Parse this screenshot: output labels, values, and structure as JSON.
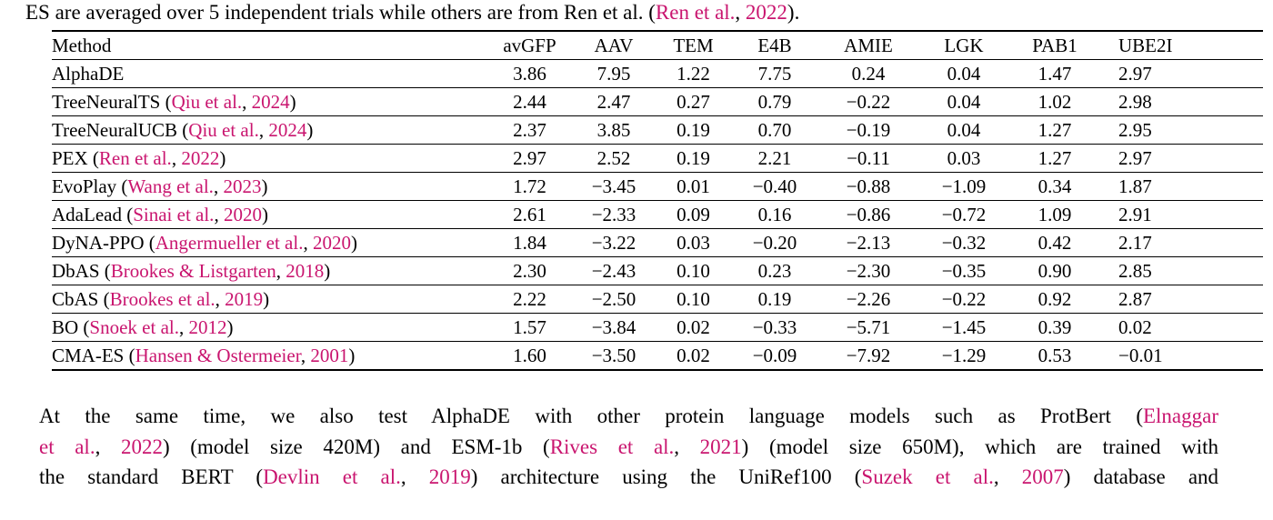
{
  "colors": {
    "background": "#ffffff",
    "text": "#000000",
    "citation": "#C9156F",
    "rule": "#000000"
  },
  "caption": {
    "segments": [
      {
        "t": "ES are averaged over 5 independent trials while others are from Ren et al. (",
        "s": "plain"
      },
      {
        "t": "Ren et al.",
        "s": "cite"
      },
      {
        "t": ", ",
        "s": "plain"
      },
      {
        "t": "2022",
        "s": "cite"
      },
      {
        "t": ").",
        "s": "plain"
      }
    ]
  },
  "table": {
    "columns": [
      "Method",
      "avGFP",
      "AAV",
      "TEM",
      "E4B",
      "AMIE",
      "LGK",
      "PAB1",
      "UBE2I"
    ],
    "rows": [
      {
        "method": [
          {
            "t": "AlphaDE",
            "s": "plain"
          }
        ],
        "values": [
          {
            "v": "3.86",
            "bold": true
          },
          {
            "v": "7.95",
            "bold": true
          },
          {
            "v": "1.22",
            "bold": true
          },
          {
            "v": "7.75",
            "bold": true
          },
          {
            "v": "0.24",
            "bold": true
          },
          {
            "v": "0.04",
            "bold": true
          },
          {
            "v": "1.47",
            "bold": true
          },
          {
            "v": "2.97",
            "bold": false
          }
        ]
      },
      {
        "method": [
          {
            "t": "TreeNeuralTS (",
            "s": "plain"
          },
          {
            "t": "Qiu et al.",
            "s": "cite"
          },
          {
            "t": ", ",
            "s": "plain"
          },
          {
            "t": "2024",
            "s": "cite"
          },
          {
            "t": ")",
            "s": "plain"
          }
        ],
        "values": [
          {
            "v": "2.44",
            "bold": false
          },
          {
            "v": "2.47",
            "bold": false
          },
          {
            "v": "0.27",
            "bold": false
          },
          {
            "v": "0.79",
            "bold": false
          },
          {
            "v": "-0.22",
            "bold": false
          },
          {
            "v": "0.04",
            "bold": true
          },
          {
            "v": "1.02",
            "bold": false
          },
          {
            "v": "2.98",
            "bold": true
          }
        ]
      },
      {
        "method": [
          {
            "t": "TreeNeuralUCB (",
            "s": "plain"
          },
          {
            "t": "Qiu et al.",
            "s": "cite"
          },
          {
            "t": ", ",
            "s": "plain"
          },
          {
            "t": "2024",
            "s": "cite"
          },
          {
            "t": ")",
            "s": "plain"
          }
        ],
        "values": [
          {
            "v": "2.37",
            "bold": false
          },
          {
            "v": "3.85",
            "bold": false
          },
          {
            "v": "0.19",
            "bold": false
          },
          {
            "v": "0.70",
            "bold": false
          },
          {
            "v": "-0.19",
            "bold": false
          },
          {
            "v": "0.04",
            "bold": true
          },
          {
            "v": "1.27",
            "bold": false
          },
          {
            "v": "2.95",
            "bold": false
          }
        ]
      },
      {
        "method": [
          {
            "t": "PEX (",
            "s": "plain"
          },
          {
            "t": "Ren et al.",
            "s": "cite"
          },
          {
            "t": ", ",
            "s": "plain"
          },
          {
            "t": "2022",
            "s": "cite"
          },
          {
            "t": ")",
            "s": "plain"
          }
        ],
        "values": [
          {
            "v": "2.97",
            "bold": false
          },
          {
            "v": "2.52",
            "bold": false
          },
          {
            "v": "0.19",
            "bold": false
          },
          {
            "v": "2.21",
            "bold": false
          },
          {
            "v": "-0.11",
            "bold": false
          },
          {
            "v": "0.03",
            "bold": false
          },
          {
            "v": "1.27",
            "bold": false
          },
          {
            "v": "2.97",
            "bold": false
          }
        ]
      },
      {
        "method": [
          {
            "t": "EvoPlay (",
            "s": "plain"
          },
          {
            "t": "Wang et al.",
            "s": "cite"
          },
          {
            "t": ", ",
            "s": "plain"
          },
          {
            "t": "2023",
            "s": "cite"
          },
          {
            "t": ")",
            "s": "plain"
          }
        ],
        "values": [
          {
            "v": "1.72",
            "bold": false
          },
          {
            "v": "-3.45",
            "bold": false
          },
          {
            "v": "0.01",
            "bold": false
          },
          {
            "v": "-0.40",
            "bold": false
          },
          {
            "v": "-0.88",
            "bold": false
          },
          {
            "v": "-1.09",
            "bold": false
          },
          {
            "v": "0.34",
            "bold": false
          },
          {
            "v": "1.87",
            "bold": false
          }
        ]
      },
      {
        "method": [
          {
            "t": "AdaLead (",
            "s": "plain"
          },
          {
            "t": "Sinai et al.",
            "s": "cite"
          },
          {
            "t": ", ",
            "s": "plain"
          },
          {
            "t": "2020",
            "s": "cite"
          },
          {
            "t": ")",
            "s": "plain"
          }
        ],
        "values": [
          {
            "v": "2.61",
            "bold": false
          },
          {
            "v": "-2.33",
            "bold": false
          },
          {
            "v": "0.09",
            "bold": false
          },
          {
            "v": "0.16",
            "bold": false
          },
          {
            "v": "-0.86",
            "bold": false
          },
          {
            "v": "-0.72",
            "bold": false
          },
          {
            "v": "1.09",
            "bold": false
          },
          {
            "v": "2.91",
            "bold": false
          }
        ]
      },
      {
        "method": [
          {
            "t": "DyNA-PPO (",
            "s": "plain"
          },
          {
            "t": "Angermueller et al.",
            "s": "cite"
          },
          {
            "t": ", ",
            "s": "plain"
          },
          {
            "t": "2020",
            "s": "cite"
          },
          {
            "t": ")",
            "s": "plain"
          }
        ],
        "values": [
          {
            "v": "1.84",
            "bold": false
          },
          {
            "v": "-3.22",
            "bold": false
          },
          {
            "v": "0.03",
            "bold": false
          },
          {
            "v": "-0.20",
            "bold": false
          },
          {
            "v": "-2.13",
            "bold": false
          },
          {
            "v": "-0.32",
            "bold": false
          },
          {
            "v": "0.42",
            "bold": false
          },
          {
            "v": "2.17",
            "bold": false
          }
        ]
      },
      {
        "method": [
          {
            "t": "DbAS (",
            "s": "plain"
          },
          {
            "t": "Brookes & Listgarten",
            "s": "cite"
          },
          {
            "t": ", ",
            "s": "plain"
          },
          {
            "t": "2018",
            "s": "cite"
          },
          {
            "t": ")",
            "s": "plain"
          }
        ],
        "values": [
          {
            "v": "2.30",
            "bold": false
          },
          {
            "v": "-2.43",
            "bold": false
          },
          {
            "v": "0.10",
            "bold": false
          },
          {
            "v": "0.23",
            "bold": false
          },
          {
            "v": "-2.30",
            "bold": false
          },
          {
            "v": "-0.35",
            "bold": false
          },
          {
            "v": "0.90",
            "bold": false
          },
          {
            "v": "2.85",
            "bold": false
          }
        ]
      },
      {
        "method": [
          {
            "t": "CbAS (",
            "s": "plain"
          },
          {
            "t": "Brookes et al.",
            "s": "cite"
          },
          {
            "t": ", ",
            "s": "plain"
          },
          {
            "t": "2019",
            "s": "cite"
          },
          {
            "t": ")",
            "s": "plain"
          }
        ],
        "values": [
          {
            "v": "2.22",
            "bold": false
          },
          {
            "v": "-2.50",
            "bold": false
          },
          {
            "v": "0.10",
            "bold": false
          },
          {
            "v": "0.19",
            "bold": false
          },
          {
            "v": "-2.26",
            "bold": false
          },
          {
            "v": "-0.22",
            "bold": false
          },
          {
            "v": "0.92",
            "bold": false
          },
          {
            "v": "2.87",
            "bold": false
          }
        ]
      },
      {
        "method": [
          {
            "t": "BO (",
            "s": "plain"
          },
          {
            "t": "Snoek et al.",
            "s": "cite"
          },
          {
            "t": ", ",
            "s": "plain"
          },
          {
            "t": "2012",
            "s": "cite"
          },
          {
            "t": ")",
            "s": "plain"
          }
        ],
        "values": [
          {
            "v": "1.57",
            "bold": false
          },
          {
            "v": "-3.84",
            "bold": false
          },
          {
            "v": "0.02",
            "bold": false
          },
          {
            "v": "-0.33",
            "bold": false
          },
          {
            "v": "-5.71",
            "bold": false
          },
          {
            "v": "-1.45",
            "bold": false
          },
          {
            "v": "0.39",
            "bold": false
          },
          {
            "v": "0.02",
            "bold": false
          }
        ]
      },
      {
        "method": [
          {
            "t": "CMA-ES (",
            "s": "plain"
          },
          {
            "t": "Hansen & Ostermeier",
            "s": "cite"
          },
          {
            "t": ", ",
            "s": "plain"
          },
          {
            "t": "2001",
            "s": "cite"
          },
          {
            "t": ")",
            "s": "plain"
          }
        ],
        "values": [
          {
            "v": "1.60",
            "bold": false
          },
          {
            "v": "-3.50",
            "bold": false
          },
          {
            "v": "0.02",
            "bold": false
          },
          {
            "v": "-0.09",
            "bold": false
          },
          {
            "v": "-7.92",
            "bold": false
          },
          {
            "v": "-1.29",
            "bold": false
          },
          {
            "v": "0.53",
            "bold": false
          },
          {
            "v": "-0.01",
            "bold": false
          }
        ]
      }
    ]
  },
  "paragraph": {
    "lines": [
      {
        "segments": [
          {
            "t": "At the same time, we also test AlphaDE with other protein language models such as ProtBert (",
            "s": "plain"
          },
          {
            "t": "Elnaggar",
            "s": "cite"
          }
        ]
      },
      {
        "segments": [
          {
            "t": "et al.",
            "s": "cite"
          },
          {
            "t": ", ",
            "s": "plain"
          },
          {
            "t": "2022",
            "s": "cite"
          },
          {
            "t": ") (model size 420M) and ESM-1b (",
            "s": "plain"
          },
          {
            "t": "Rives et al.",
            "s": "cite"
          },
          {
            "t": ", ",
            "s": "plain"
          },
          {
            "t": "2021",
            "s": "cite"
          },
          {
            "t": ") (model size 650M), which are trained with",
            "s": "plain"
          }
        ]
      },
      {
        "segments": [
          {
            "t": "the standard BERT (",
            "s": "plain"
          },
          {
            "t": "Devlin et al.",
            "s": "cite"
          },
          {
            "t": ", ",
            "s": "plain"
          },
          {
            "t": "2019",
            "s": "cite"
          },
          {
            "t": ") architecture using the UniRef100 (",
            "s": "plain"
          },
          {
            "t": "Suzek et al.",
            "s": "cite"
          },
          {
            "t": ", ",
            "s": "plain"
          },
          {
            "t": "2007",
            "s": "cite"
          },
          {
            "t": ") database and",
            "s": "plain"
          }
        ]
      }
    ]
  }
}
